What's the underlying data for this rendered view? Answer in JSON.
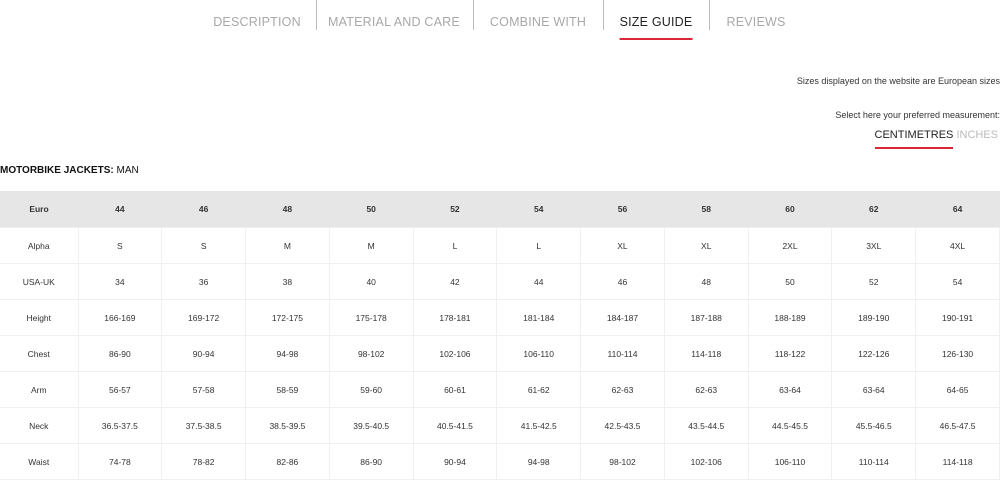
{
  "tabs": [
    {
      "label": "DESCRIPTION",
      "active": false
    },
    {
      "label": "MATERIAL AND CARE",
      "active": false
    },
    {
      "label": "COMBINE WITH",
      "active": false
    },
    {
      "label": "SIZE GUIDE",
      "active": true
    },
    {
      "label": "REVIEWS",
      "active": false
    }
  ],
  "notes": {
    "european": "Sizes displayed on the website are European sizes",
    "select": "Select here your preferred measurement:",
    "centimetres": "CENTIMETRES",
    "inches": "INCHES"
  },
  "section": {
    "title_bold": "MOTORBIKE JACKETS:",
    "title_rest": " MAN"
  },
  "accent": "#d9283a",
  "table": {
    "header": [
      "Euro",
      "44",
      "46",
      "48",
      "50",
      "52",
      "54",
      "56",
      "58",
      "60",
      "62",
      "64"
    ],
    "rows": [
      [
        "Alpha",
        "S",
        "S",
        "M",
        "M",
        "L",
        "L",
        "XL",
        "XL",
        "2XL",
        "3XL",
        "4XL"
      ],
      [
        "USA-UK",
        "34",
        "36",
        "38",
        "40",
        "42",
        "44",
        "46",
        "48",
        "50",
        "52",
        "54"
      ],
      [
        "Height",
        "166-169",
        "169-172",
        "172-175",
        "175-178",
        "178-181",
        "181-184",
        "184-187",
        "187-188",
        "188-189",
        "189-190",
        "190-191"
      ],
      [
        "Chest",
        "86-90",
        "90-94",
        "94-98",
        "98-102",
        "102-106",
        "106-110",
        "110-114",
        "114-118",
        "118-122",
        "122-126",
        "126-130"
      ],
      [
        "Arm",
        "56-57",
        "57-58",
        "58-59",
        "59-60",
        "60-61",
        "61-62",
        "62-63",
        "62-63",
        "63-64",
        "63-64",
        "64-65"
      ],
      [
        "Neck",
        "36.5-37.5",
        "37.5-38.5",
        "38.5-39.5",
        "39.5-40.5",
        "40.5-41.5",
        "41.5-42.5",
        "42.5-43.5",
        "43.5-44.5",
        "44.5-45.5",
        "45.5-46.5",
        "46.5-47.5"
      ],
      [
        "Waist",
        "74-78",
        "78-82",
        "82-86",
        "86-90",
        "90-94",
        "94-98",
        "98-102",
        "102-106",
        "106-110",
        "110-114",
        "114-118"
      ]
    ]
  }
}
